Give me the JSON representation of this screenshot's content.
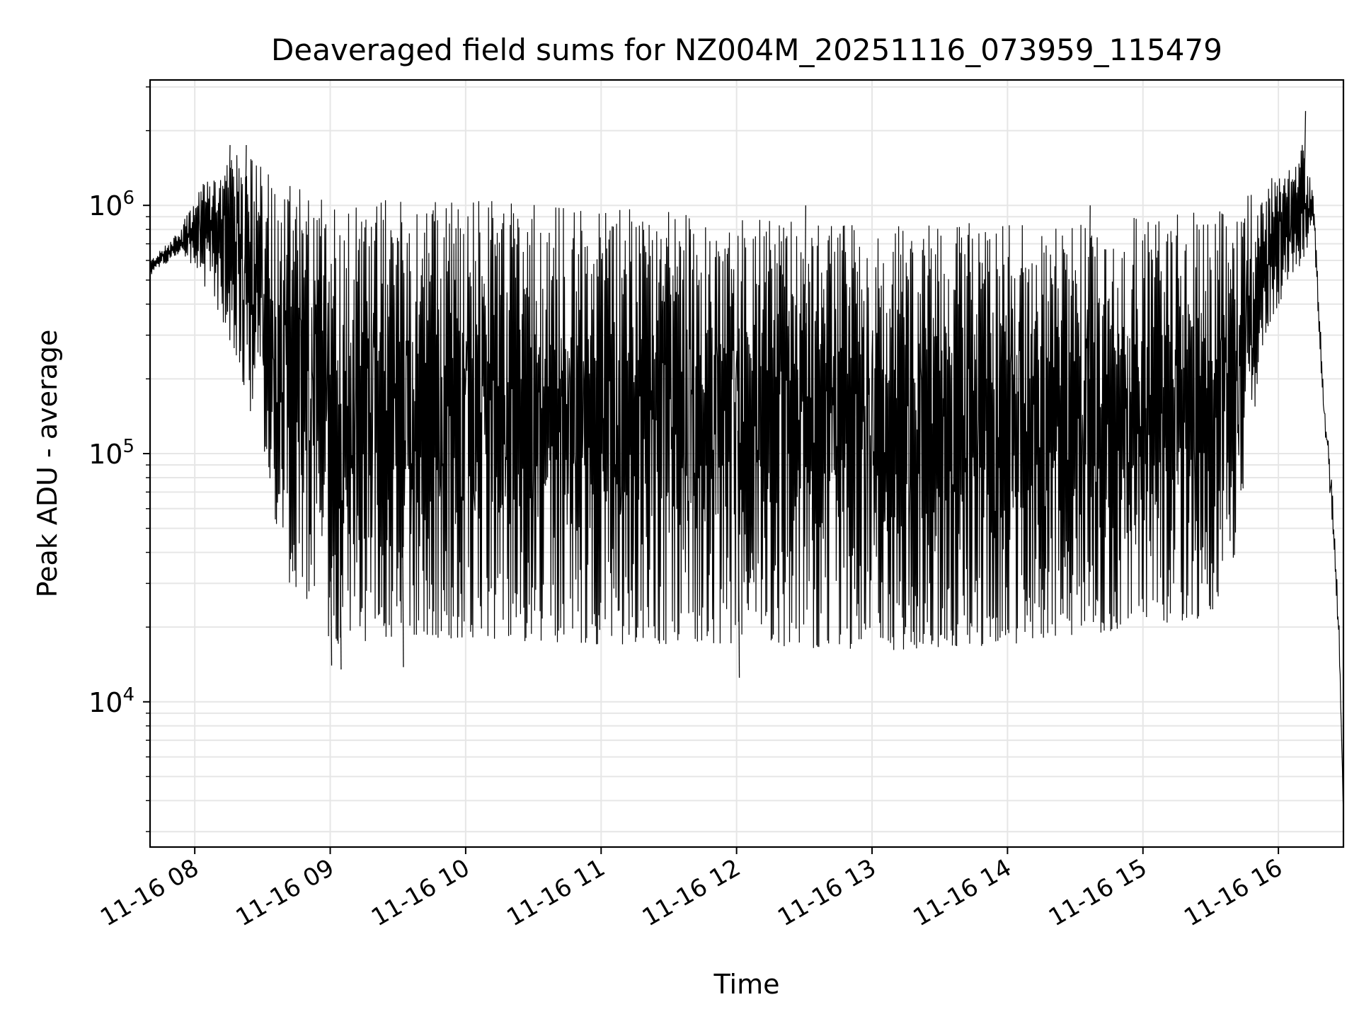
{
  "chart_data": {
    "type": "line",
    "title": "Deaveraged field sums for NZ004M_20251116_073959_115479",
    "xlabel": "Time",
    "ylabel": "Peak ADU - average",
    "y_scale": "log",
    "ylim": [
      2600,
      3200000
    ],
    "xlim_hours": [
      7.67,
      16.48
    ],
    "grid": true,
    "line_color": "#000000",
    "x_ticks": [
      {
        "hour": 8,
        "label": "11-16 08"
      },
      {
        "hour": 9,
        "label": "11-16 09"
      },
      {
        "hour": 10,
        "label": "11-16 10"
      },
      {
        "hour": 11,
        "label": "11-16 11"
      },
      {
        "hour": 12,
        "label": "11-16 12"
      },
      {
        "hour": 13,
        "label": "11-16 13"
      },
      {
        "hour": 14,
        "label": "11-16 14"
      },
      {
        "hour": 15,
        "label": "11-16 15"
      },
      {
        "hour": 16,
        "label": "11-16 16"
      }
    ],
    "y_ticks": [
      {
        "value": 10000,
        "base": "10",
        "exp": "4"
      },
      {
        "value": 100000,
        "base": "10",
        "exp": "5"
      },
      {
        "value": 1000000,
        "base": "10",
        "exp": "6"
      }
    ],
    "series": [
      {
        "name": "deaveraged field sum",
        "description": "rapidly oscillating series; upper envelope ~1e6, lower envelope ~2e4 through the night, converging near the start and end",
        "envelope": [
          {
            "hour": 7.67,
            "high": 600000,
            "low": 520000
          },
          {
            "hour": 7.9,
            "high": 800000,
            "low": 650000
          },
          {
            "hour": 8.0,
            "high": 1200000,
            "low": 550000
          },
          {
            "hour": 8.15,
            "high": 1300000,
            "low": 400000
          },
          {
            "hour": 8.3,
            "high": 1600000,
            "low": 250000
          },
          {
            "hour": 8.45,
            "high": 1600000,
            "low": 120000
          },
          {
            "hour": 8.55,
            "high": 1400000,
            "low": 70000
          },
          {
            "hour": 8.7,
            "high": 1200000,
            "low": 30000
          },
          {
            "hour": 9.0,
            "high": 1100000,
            "low": 17000
          },
          {
            "hour": 9.5,
            "high": 1100000,
            "low": 18000
          },
          {
            "hour": 10.0,
            "high": 1050000,
            "low": 18000
          },
          {
            "hour": 11.0,
            "high": 1000000,
            "low": 17000
          },
          {
            "hour": 12.0,
            "high": 900000,
            "low": 17000
          },
          {
            "hour": 13.0,
            "high": 850000,
            "low": 16000
          },
          {
            "hour": 14.0,
            "high": 850000,
            "low": 17000
          },
          {
            "hour": 15.0,
            "high": 900000,
            "low": 20000
          },
          {
            "hour": 15.5,
            "high": 950000,
            "low": 22000
          },
          {
            "hour": 15.7,
            "high": 1000000,
            "low": 40000
          },
          {
            "hour": 15.8,
            "high": 1200000,
            "low": 120000
          },
          {
            "hour": 15.9,
            "high": 1300000,
            "low": 300000
          },
          {
            "hour": 16.05,
            "high": 1300000,
            "low": 450000
          },
          {
            "hour": 16.18,
            "high": 1800000,
            "low": 600000
          },
          {
            "hour": 16.26,
            "high": 1100000,
            "low": 800000
          },
          {
            "hour": 16.33,
            "high": 200000,
            "low": 150000
          },
          {
            "hour": 16.4,
            "high": 70000,
            "low": 50000
          },
          {
            "hour": 16.45,
            "high": 20000,
            "low": 15000
          },
          {
            "hour": 16.48,
            "high": 3500,
            "low": 3500
          }
        ],
        "spikes": [
          {
            "hour": 8.25,
            "value": 1750000
          },
          {
            "hour": 8.37,
            "value": 1750000
          },
          {
            "hour": 9.0,
            "low": 14000
          },
          {
            "hour": 9.07,
            "low": 13500
          },
          {
            "hour": 9.53,
            "low": 13800
          },
          {
            "hour": 12.01,
            "low": 12500
          },
          {
            "hour": 12.5,
            "value": 1000000
          },
          {
            "hour": 14.6,
            "value": 1000000
          },
          {
            "hour": 16.19,
            "value": 2400000
          }
        ]
      }
    ]
  }
}
